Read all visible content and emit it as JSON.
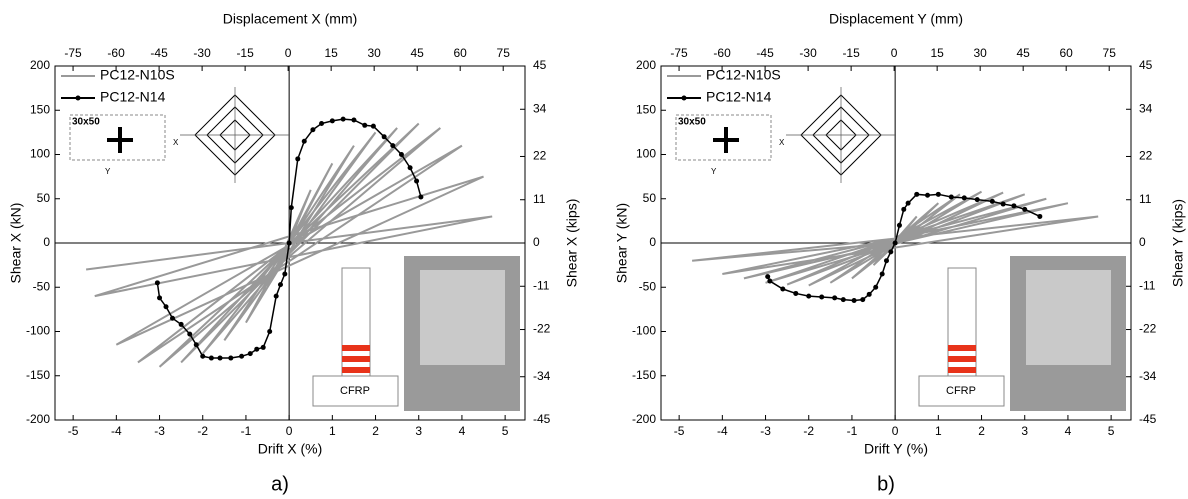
{
  "chart_data": [
    {
      "type": "line",
      "caption": "a)",
      "xlabel": "Drift X (%)",
      "ylabel": "Shear X (kN)",
      "x2label": "Displacement X (mm)",
      "y2label": "Shear X (kips)",
      "xlim": [
        -5.42,
        5.46
      ],
      "xticks": [
        -5,
        -4,
        -3,
        -2,
        -1,
        0,
        1,
        2,
        3,
        4,
        5
      ],
      "x2lim": [
        -81.3,
        82.6
      ],
      "x2ticks": [
        -75,
        -60,
        -45,
        -30,
        -15,
        0,
        15,
        30,
        45,
        60,
        75
      ],
      "ylim": [
        -200,
        200
      ],
      "yticks": [
        -200,
        -150,
        -100,
        -50,
        0,
        50,
        100,
        150,
        200
      ],
      "y2lim": [
        -45,
        45
      ],
      "y2ticks": [
        -45,
        -34,
        -22,
        -11,
        0,
        11,
        22,
        34,
        45
      ],
      "annotations": [
        "30x50",
        "CFRP",
        "X",
        "Y"
      ],
      "series": [
        {
          "name": "PC12-N10S",
          "color": "#999999",
          "marker": false,
          "x": [
            0,
            0.5,
            -0.5,
            1,
            -1,
            1.5,
            -1.5,
            2,
            -2,
            2.5,
            -2.5,
            3,
            -3,
            3.5,
            -3.5,
            4,
            -4,
            4.5,
            -4.5,
            4.7,
            -4.7,
            0
          ],
          "values": [
            0,
            60,
            -50,
            90,
            -90,
            110,
            -110,
            125,
            -125,
            130,
            -135,
            135,
            -140,
            130,
            -135,
            110,
            -115,
            75,
            -60,
            30,
            -30,
            0
          ]
        },
        {
          "name": "PC12-N14",
          "color": "#000000",
          "marker": true,
          "x": [
            -3.05,
            -3.0,
            -2.85,
            -2.7,
            -2.5,
            -2.3,
            -2.15,
            -2.0,
            -1.8,
            -1.6,
            -1.35,
            -1.1,
            -0.9,
            -0.75,
            -0.6,
            -0.45,
            -0.3,
            -0.2,
            -0.1,
            0,
            0.05,
            0.2,
            0.35,
            0.55,
            0.75,
            1.0,
            1.25,
            1.5,
            1.75,
            1.95,
            2.2,
            2.4,
            2.6,
            2.8,
            2.95,
            3.05
          ],
          "values": [
            -45,
            -62,
            -72,
            -85,
            -92,
            -103,
            -115,
            -128,
            -130,
            -130,
            -130,
            -128,
            -125,
            -120,
            -118,
            -100,
            -60,
            -47,
            -35,
            0,
            40,
            95,
            115,
            128,
            135,
            138,
            140,
            139,
            133,
            132,
            120,
            110,
            100,
            85,
            70,
            52
          ]
        }
      ]
    },
    {
      "type": "line",
      "caption": "b)",
      "xlabel": "Drift Y (%)",
      "ylabel": "Shear Y (kN)",
      "x2label": "Displacement Y (mm)",
      "y2label": "Shear Y (kips)",
      "xlim": [
        -5.42,
        5.46
      ],
      "xticks": [
        -5,
        -4,
        -3,
        -2,
        -1,
        0,
        1,
        2,
        3,
        4,
        5
      ],
      "x2lim": [
        -81.3,
        82.6
      ],
      "x2ticks": [
        -75,
        -60,
        -45,
        -30,
        -15,
        0,
        15,
        30,
        45,
        60,
        75
      ],
      "ylim": [
        -200,
        200
      ],
      "yticks": [
        -200,
        -150,
        -100,
        -50,
        0,
        50,
        100,
        150,
        200
      ],
      "y2lim": [
        -45,
        45
      ],
      "y2ticks": [
        -45,
        -34,
        -22,
        -11,
        0,
        11,
        22,
        34,
        45
      ],
      "annotations": [
        "30x50",
        "CFRP",
        "X",
        "Y"
      ],
      "series": [
        {
          "name": "PC12-N10S",
          "color": "#999999",
          "marker": false,
          "x": [
            0,
            0.5,
            -0.5,
            1,
            -1,
            1.5,
            -1.5,
            2,
            -2,
            2.5,
            -2.5,
            3,
            -3,
            3.5,
            -3.5,
            4,
            -4,
            4.7,
            -4.7,
            0
          ],
          "values": [
            0,
            30,
            -25,
            45,
            -40,
            55,
            -45,
            58,
            -48,
            57,
            -47,
            55,
            -45,
            50,
            -40,
            45,
            -35,
            30,
            -20,
            0
          ]
        },
        {
          "name": "PC12-N14",
          "color": "#000000",
          "marker": true,
          "x": [
            -2.95,
            -2.9,
            -2.6,
            -2.3,
            -2.0,
            -1.7,
            -1.4,
            -1.2,
            -0.95,
            -0.75,
            -0.6,
            -0.45,
            -0.3,
            -0.2,
            -0.1,
            0,
            0.1,
            0.2,
            0.3,
            0.5,
            0.75,
            1.0,
            1.3,
            1.6,
            1.9,
            2.25,
            2.5,
            2.75,
            3.0,
            3.35
          ],
          "values": [
            -38,
            -43,
            -52,
            -57,
            -60,
            -61,
            -62,
            -64,
            -65,
            -64,
            -58,
            -50,
            -35,
            -20,
            -10,
            0,
            20,
            38,
            45,
            55,
            54,
            55,
            52,
            51,
            49,
            47,
            44,
            42,
            38,
            30
          ]
        }
      ]
    }
  ]
}
